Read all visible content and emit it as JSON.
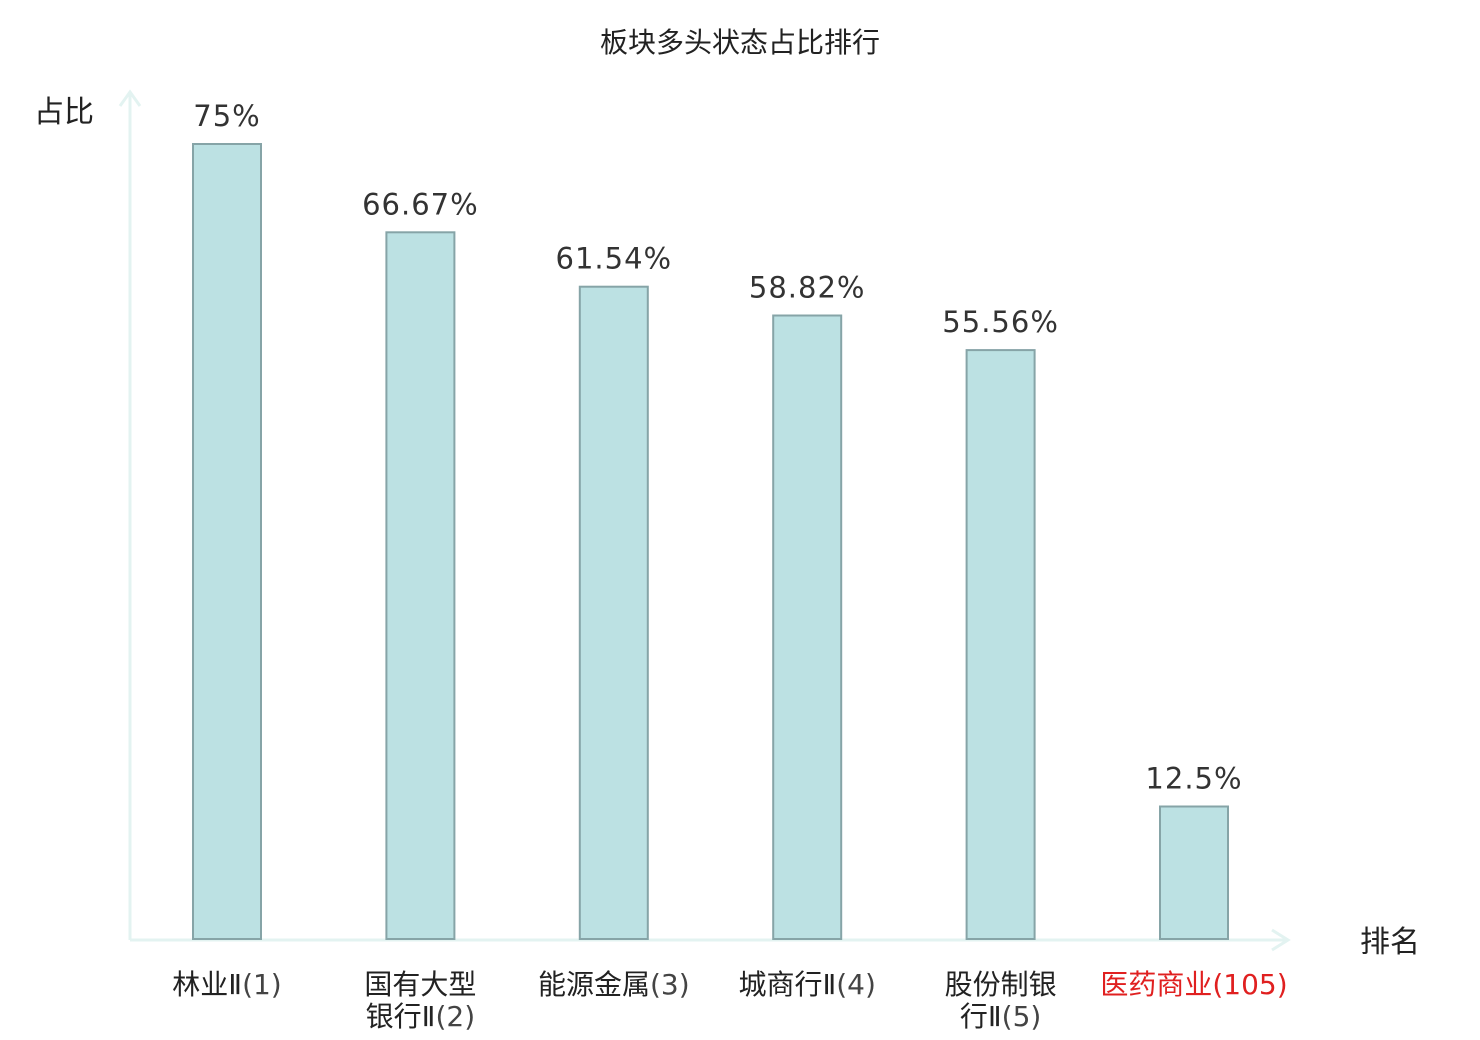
{
  "chart_data": {
    "type": "bar",
    "title": "板块多头状态占比排行",
    "ylabel": "占比",
    "xlabel": "排名",
    "ylim": [
      0,
      80
    ],
    "grid": false,
    "categories": [
      {
        "name": "林业Ⅱ",
        "rank": "(1)"
      },
      {
        "name": "国有大型银行Ⅱ",
        "rank": "(2)"
      },
      {
        "name": "能源金属",
        "rank": "(3)"
      },
      {
        "name": "城商行Ⅱ",
        "rank": "(4)"
      },
      {
        "name": "股份制银行Ⅱ",
        "rank": "(5)"
      },
      {
        "name": "医药商业",
        "rank": "(105)"
      }
    ],
    "values": [
      75,
      66.67,
      61.54,
      58.82,
      55.56,
      12.5
    ],
    "value_labels": [
      "75%",
      "66.67%",
      "61.54%",
      "58.82%",
      "55.56%",
      "12.5%"
    ],
    "highlight_index": 5,
    "colors": {
      "bar_fill": "#bce1e3",
      "bar_stroke": "#86a4a7",
      "axis": "#e3f3f1",
      "text": "#222222",
      "value_text": "#333333",
      "rank_text": "#444444",
      "highlight": "#e02020"
    }
  }
}
